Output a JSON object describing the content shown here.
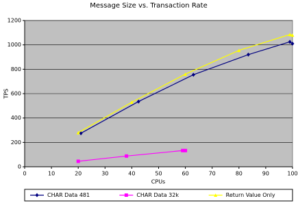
{
  "chart_data": {
    "type": "line",
    "title": "Message Size vs. Transaction Rate",
    "x_label": "CPUs",
    "y_label": "TPS",
    "xlim": [
      0,
      100
    ],
    "xticks": [
      0,
      10,
      20,
      30,
      40,
      50,
      60,
      70,
      80,
      90,
      100
    ],
    "ylim": [
      0,
      1200
    ],
    "yticks": [
      0,
      200,
      400,
      600,
      800,
      1000,
      1200
    ],
    "grid": true,
    "legend": "bottom",
    "series": [
      {
        "name": "CHAR Data 481",
        "color": "#000080",
        "marker": "diamond",
        "x": [
          21,
          42.5,
          63,
          83.5,
          99,
          100
        ],
        "values": [
          275,
          535,
          755,
          920,
          1025,
          1010
        ]
      },
      {
        "name": "CHAR Data 32k",
        "color": "#ff00ff",
        "marker": "square",
        "x": [
          20,
          38,
          59,
          60
        ],
        "values": [
          45,
          88,
          133,
          133
        ]
      },
      {
        "name": "Return Value Only",
        "color": "#ffff00",
        "marker": "triangle",
        "x": [
          20,
          40,
          60,
          80,
          99,
          100
        ],
        "values": [
          280,
          530,
          760,
          955,
          1085,
          1080
        ]
      }
    ]
  }
}
